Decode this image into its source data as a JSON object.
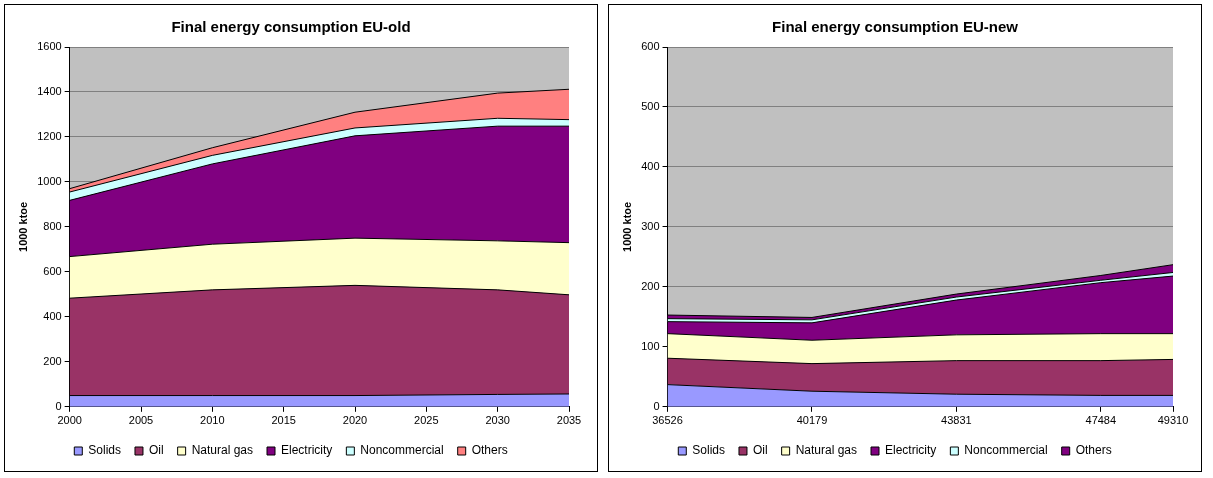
{
  "chart_data": [
    {
      "type": "area",
      "title": "Final energy consumption EU-old",
      "ylabel": "1000 ktoe",
      "stacked": true,
      "x": [
        2000,
        2010,
        2020,
        2030,
        2035
      ],
      "xlim": [
        2000,
        2035
      ],
      "xticks": [
        2000,
        2005,
        2010,
        2015,
        2020,
        2025,
        2030,
        2035
      ],
      "ylim": [
        0,
        1600
      ],
      "yticks": [
        0,
        200,
        400,
        600,
        800,
        1000,
        1200,
        1400,
        1600
      ],
      "grid": "y",
      "legend": "bottom",
      "series": [
        {
          "name": "Solids",
          "color": "#9999ff",
          "values": [
            50,
            50,
            50,
            55,
            57
          ]
        },
        {
          "name": "Oil",
          "color": "#993366",
          "values": [
            433,
            470,
            490,
            465,
            441
          ]
        },
        {
          "name": "Natural gas",
          "color": "#ffffcc",
          "values": [
            185,
            203,
            210,
            218,
            232
          ]
        },
        {
          "name": "Electricity",
          "color": "#800080",
          "values": [
            250,
            357,
            455,
            510,
            518
          ]
        },
        {
          "name": "Noncommercial",
          "color": "#ccffff",
          "values": [
            37,
            38,
            35,
            35,
            29
          ]
        },
        {
          "name": "Others",
          "color": "#ff8080",
          "values": [
            15,
            34,
            70,
            112,
            135
          ]
        }
      ]
    },
    {
      "type": "area",
      "title": "Final energy consumption EU-new",
      "ylabel": "1000 ktoe",
      "stacked": true,
      "x": [
        36526,
        40179,
        43831,
        47484,
        49310
      ],
      "xlim": [
        36526,
        49310
      ],
      "xticks": [
        36526,
        40179,
        43831,
        47484,
        49310
      ],
      "ylim": [
        0,
        600
      ],
      "yticks": [
        0,
        100,
        200,
        300,
        400,
        500,
        600
      ],
      "grid": "y",
      "legend": "bottom",
      "series": [
        {
          "name": "Solids",
          "color": "#9999ff",
          "values": [
            37,
            26,
            21,
            19,
            19
          ]
        },
        {
          "name": "Oil",
          "color": "#993366",
          "values": [
            44,
            46,
            56,
            58,
            60
          ]
        },
        {
          "name": "Natural gas",
          "color": "#ffffcc",
          "values": [
            41,
            39,
            43,
            45,
            43
          ]
        },
        {
          "name": "Electricity",
          "color": "#800080",
          "values": [
            20,
            29,
            58,
            85,
            96
          ]
        },
        {
          "name": "Noncommercial",
          "color": "#ccffff",
          "values": [
            5,
            5,
            5,
            4,
            6
          ]
        },
        {
          "name": "Others",
          "color": "#800080",
          "values": [
            6,
            4,
            5,
            8,
            13
          ]
        }
      ]
    }
  ]
}
